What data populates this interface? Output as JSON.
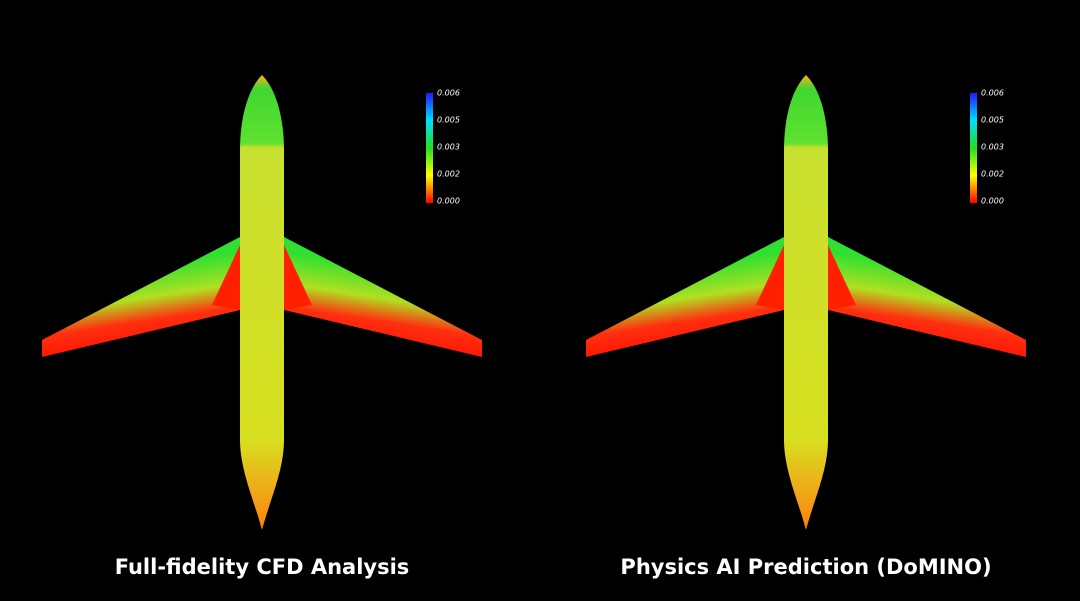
{
  "panels": [
    {
      "caption": "Full-fidelity CFD Analysis",
      "colorbar": [
        "0.006",
        "0.005",
        "0.003",
        "0.002",
        "0.000"
      ]
    },
    {
      "caption": "Physics AI Prediction (DoMINO)",
      "colorbar": [
        "0.006",
        "0.005",
        "0.003",
        "0.002",
        "0.000"
      ]
    }
  ]
}
